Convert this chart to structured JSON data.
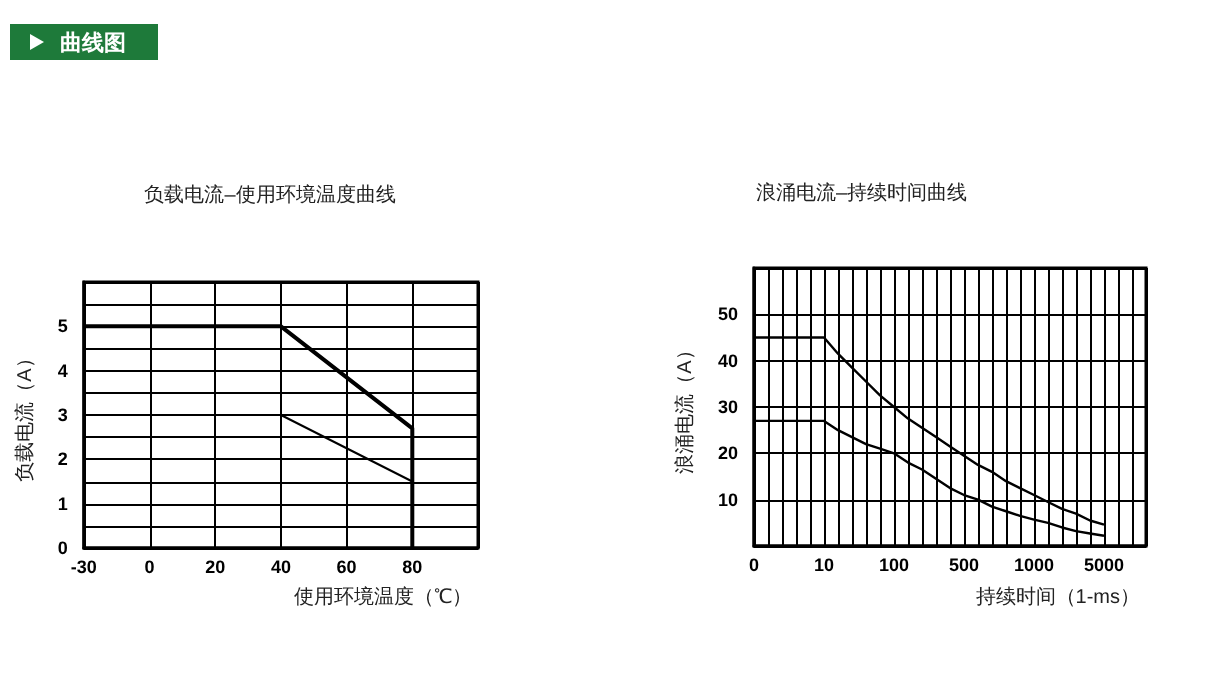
{
  "chart_data": [
    {
      "type": "line",
      "title": "负载电流–使用环境温度曲线",
      "xlabel": "使用环境温度（℃）",
      "ylabel": "负载电流（A）",
      "annotations": [
        "曲线图"
      ],
      "categories": [
        "-30",
        "0",
        "20",
        "40",
        "60",
        "80",
        null
      ],
      "ylim": [
        0,
        6
      ],
      "yticks": [
        0,
        {
          "value": 0.5,
          "label": null
        },
        1,
        {
          "value": 1.5,
          "label": null
        },
        2,
        {
          "value": 2.5,
          "label": null
        },
        3,
        {
          "value": 3.5,
          "label": null
        },
        4,
        {
          "value": 4.5,
          "label": null
        },
        5,
        {
          "value": 5.5,
          "label": null
        },
        {
          "value": 6,
          "label": null
        }
      ],
      "grid": true,
      "marker": "none",
      "line_style": "solid",
      "series": [
        {
          "color": "#000000",
          "x": [
            "-30",
            "40",
            "80",
            "80"
          ],
          "values": [
            5,
            5,
            2.7,
            0
          ]
        },
        {
          "color": "#000000",
          "x": [
            "-30",
            "40",
            "80"
          ],
          "values": [
            3,
            3,
            1.5
          ]
        }
      ]
    },
    {
      "type": "line",
      "title": "浪涌电流–持续时间曲线",
      "xlabel": "持续时间（1-ms）",
      "ylabel": "浪涌电流（A）",
      "categories": [
        "0",
        null,
        null,
        null,
        null,
        "10",
        null,
        null,
        null,
        null,
        "100",
        null,
        null,
        null,
        null,
        "500",
        null,
        null,
        null,
        null,
        "1000",
        null,
        null,
        null,
        null,
        "5000",
        null,
        null,
        null
      ],
      "ylim": [
        0,
        60
      ],
      "yticks": [
        {
          "value": 0,
          "label": null
        },
        10,
        20,
        30,
        40,
        50,
        {
          "value": 60,
          "label": null
        }
      ],
      "grid": true,
      "marker": "none",
      "line_style": "solid",
      "series": [
        {
          "color": "#000000",
          "values": [
            45,
            45,
            45,
            45,
            45,
            45,
            41.5,
            38.5,
            35.5,
            32.5,
            30,
            27.5,
            25.5,
            23.5,
            21.5,
            19.5,
            17.5,
            16,
            14,
            12.5,
            11,
            9.5,
            8,
            7,
            5.5,
            4.6,
            null,
            null,
            null
          ]
        },
        {
          "color": "#000000",
          "values": [
            27,
            27,
            27,
            27,
            27,
            27,
            25,
            23.5,
            22,
            21,
            20,
            18,
            16.5,
            14.5,
            12.5,
            11,
            10,
            8.5,
            7.5,
            6.5,
            5.7,
            5,
            4,
            3.2,
            2.7,
            2.2,
            null,
            null,
            null
          ]
        }
      ]
    }
  ]
}
